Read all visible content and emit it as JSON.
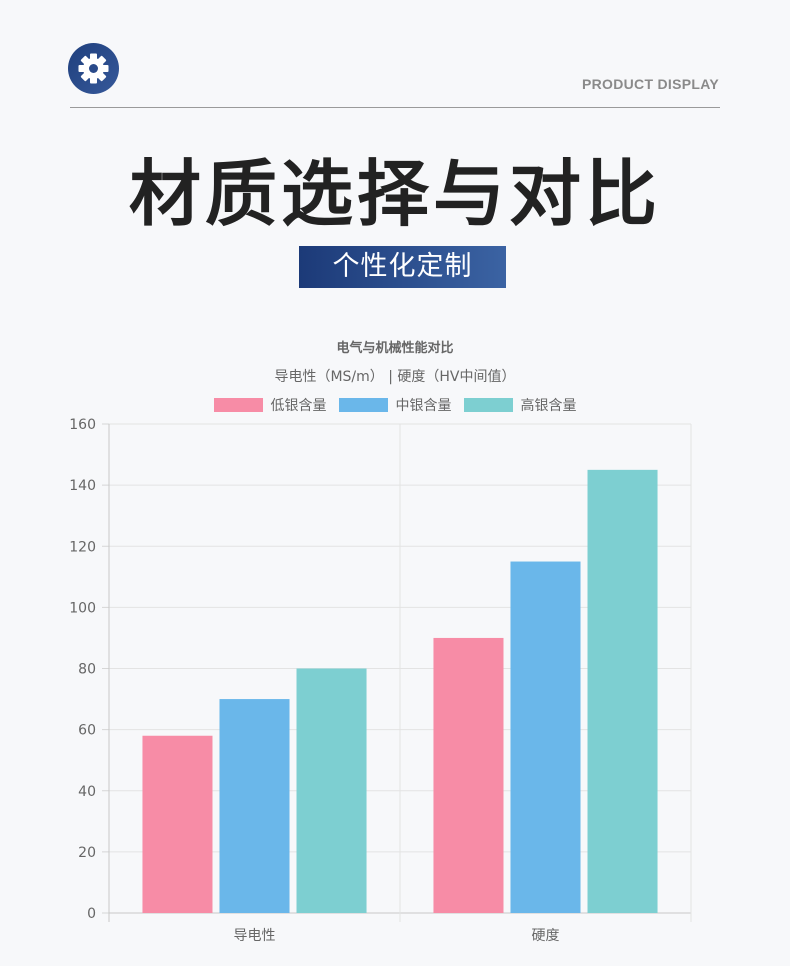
{
  "header": {
    "logo_icon": "gear-icon",
    "tagline": "PRODUCT DISPLAY"
  },
  "main": {
    "title": "材质选择与对比",
    "badge": "个性化定制"
  },
  "colors": {
    "accent_dark": "#1c3a78",
    "low": "#f78ca6",
    "mid": "#6ab7ea",
    "high": "#7dcfd1"
  },
  "chart_data": {
    "type": "bar",
    "title": "电气与机械性能对比",
    "subtitle": "导电性（MS/m） | 硬度（HV中间值）",
    "categories": [
      "导电性",
      "硬度"
    ],
    "series": [
      {
        "name": "低银含量",
        "color": "#f78ca6",
        "values": [
          58,
          90
        ]
      },
      {
        "name": "中银含量",
        "color": "#6ab7ea",
        "values": [
          70,
          115
        ]
      },
      {
        "name": "高银含量",
        "color": "#7dcfd1",
        "values": [
          80,
          145
        ]
      }
    ],
    "ylim": [
      0,
      160
    ],
    "yticks": [
      0,
      20,
      40,
      60,
      80,
      100,
      120,
      140,
      160
    ],
    "grid": true,
    "legend": "top"
  }
}
